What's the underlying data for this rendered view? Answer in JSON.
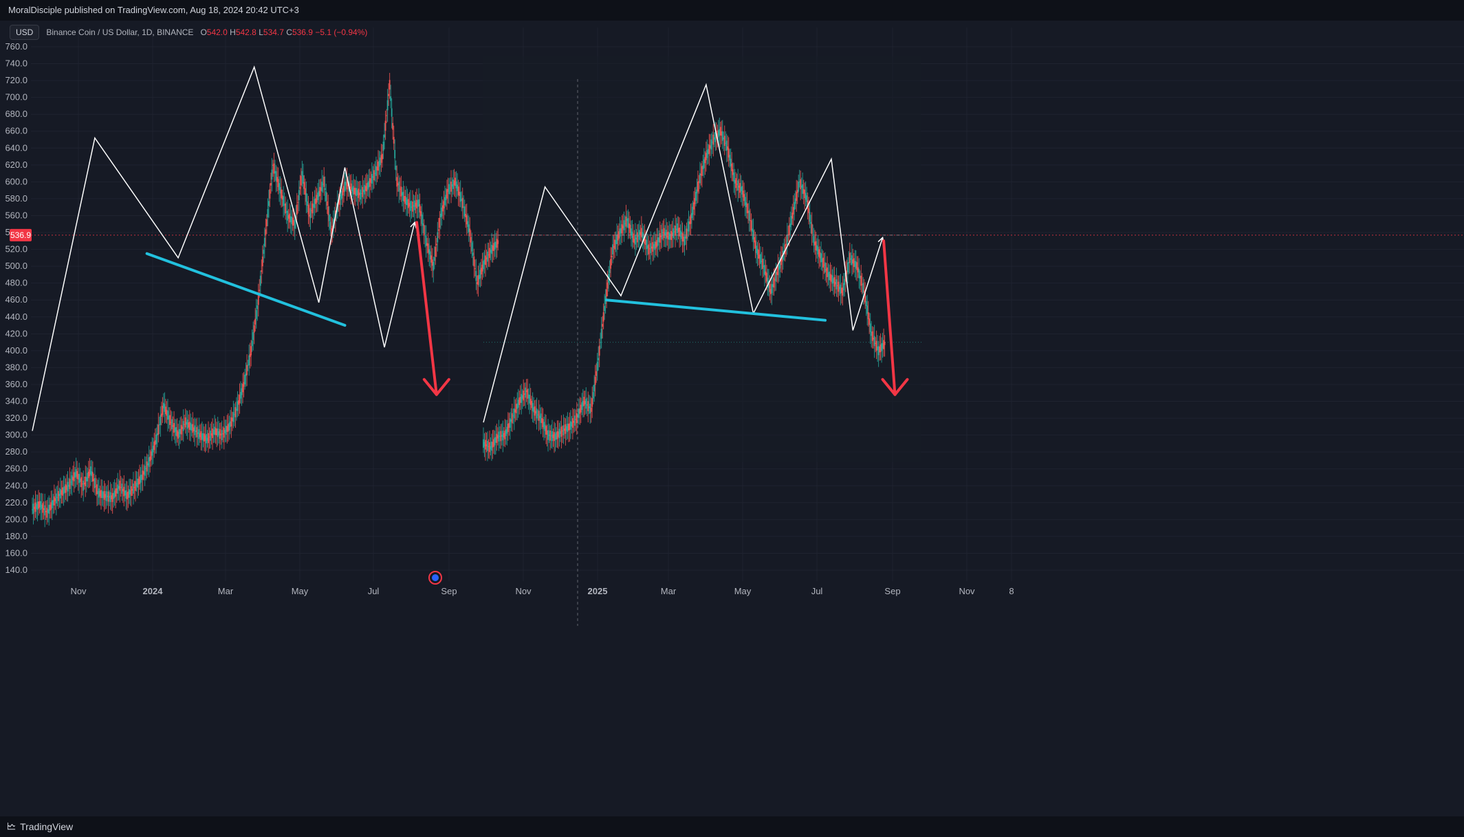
{
  "header": {
    "publisher_text": "MoralDisciple published on TradingView.com, Aug 18, 2024 20:42 UTC+3"
  },
  "legend": {
    "currency_button": "USD",
    "symbol": "Binance Coin / US Dollar, 1D, BINANCE",
    "o_label": "O",
    "o_value": "542.0",
    "h_label": "H",
    "h_value": "542.8",
    "l_label": "L",
    "l_value": "534.7",
    "c_label": "C",
    "c_value": "536.9",
    "change": "−5.1 (−0.94%)"
  },
  "footer": {
    "brand": "TradingView"
  },
  "colors": {
    "background": "#161a25",
    "up": "#26a69a",
    "down": "#ef5350",
    "pattern_line": "#ffffff",
    "neckline": "#22c1de",
    "arrow": "#f23645",
    "price_tag": "#f23645"
  },
  "chart_data": {
    "type": "line",
    "title": "",
    "xlabel": "",
    "ylabel": "",
    "ylim": [
      130,
      772
    ],
    "y_ticks": [
      760,
      740,
      720,
      700,
      680,
      660,
      640,
      620,
      600,
      580,
      560,
      540,
      520,
      500,
      480,
      460,
      440,
      420,
      400,
      380,
      360,
      340,
      320,
      300,
      280,
      260,
      240,
      220,
      200,
      180,
      160,
      140
    ],
    "x_ticks": [
      "Nov",
      "2024",
      "Mar",
      "May",
      "Jul",
      "Sep",
      "Nov",
      "2025",
      "Mar",
      "May",
      "Jul",
      "Sep",
      "Nov",
      "8"
    ],
    "current_price_label": "536.9",
    "current_price": 536.9,
    "series": [
      {
        "values": [
          [
            0,
            212
          ],
          [
            7,
            218
          ],
          [
            14,
            208
          ],
          [
            21,
            222
          ],
          [
            28,
            232
          ],
          [
            35,
            240
          ],
          [
            42,
            255
          ],
          [
            49,
            240
          ],
          [
            56,
            258
          ],
          [
            63,
            232
          ],
          [
            70,
            228
          ],
          [
            77,
            226
          ],
          [
            84,
            240
          ],
          [
            91,
            228
          ],
          [
            98,
            238
          ],
          [
            105,
            250
          ],
          [
            112,
            268
          ],
          [
            119,
            295
          ],
          [
            126,
            335
          ],
          [
            133,
            315
          ],
          [
            140,
            300
          ],
          [
            147,
            315
          ],
          [
            154,
            308
          ],
          [
            161,
            300
          ],
          [
            168,
            295
          ],
          [
            175,
            305
          ],
          [
            182,
            300
          ],
          [
            189,
            310
          ],
          [
            196,
            330
          ],
          [
            203,
            360
          ],
          [
            210,
            400
          ],
          [
            217,
            460
          ],
          [
            224,
            540
          ],
          [
            231,
            620
          ],
          [
            238,
            590
          ],
          [
            245,
            560
          ],
          [
            252,
            550
          ],
          [
            259,
            610
          ],
          [
            266,
            560
          ],
          [
            273,
            580
          ],
          [
            280,
            600
          ],
          [
            287,
            540
          ],
          [
            294,
            575
          ],
          [
            301,
            598
          ],
          [
            308,
            590
          ],
          [
            315,
            585
          ],
          [
            322,
            595
          ],
          [
            329,
            610
          ],
          [
            336,
            630
          ],
          [
            343,
            715
          ],
          [
            350,
            600
          ],
          [
            357,
            580
          ],
          [
            364,
            570
          ],
          [
            371,
            575
          ],
          [
            378,
            530
          ],
          [
            385,
            500
          ],
          [
            392,
            560
          ],
          [
            399,
            590
          ],
          [
            406,
            600
          ],
          [
            413,
            575
          ],
          [
            420,
            540
          ],
          [
            427,
            480
          ],
          [
            434,
            505
          ],
          [
            441,
            520
          ],
          [
            448,
            530
          ]
        ]
      },
      {
        "values": [
          [
            0,
            290
          ],
          [
            7,
            285
          ],
          [
            14,
            298
          ],
          [
            21,
            300
          ],
          [
            28,
            320
          ],
          [
            35,
            340
          ],
          [
            42,
            352
          ],
          [
            49,
            330
          ],
          [
            56,
            320
          ],
          [
            63,
            300
          ],
          [
            70,
            298
          ],
          [
            77,
            305
          ],
          [
            84,
            310
          ],
          [
            91,
            320
          ],
          [
            98,
            340
          ],
          [
            105,
            330
          ],
          [
            112,
            390
          ],
          [
            119,
            460
          ],
          [
            126,
            520
          ],
          [
            133,
            540
          ],
          [
            140,
            555
          ],
          [
            147,
            530
          ],
          [
            154,
            540
          ],
          [
            161,
            520
          ],
          [
            168,
            525
          ],
          [
            175,
            540
          ],
          [
            182,
            535
          ],
          [
            189,
            545
          ],
          [
            196,
            530
          ],
          [
            203,
            560
          ],
          [
            210,
            600
          ],
          [
            217,
            630
          ],
          [
            224,
            650
          ],
          [
            231,
            660
          ],
          [
            238,
            640
          ],
          [
            245,
            600
          ],
          [
            252,
            590
          ],
          [
            259,
            560
          ],
          [
            266,
            520
          ],
          [
            273,
            500
          ],
          [
            280,
            470
          ],
          [
            287,
            495
          ],
          [
            294,
            520
          ],
          [
            301,
            560
          ],
          [
            308,
            600
          ],
          [
            315,
            580
          ],
          [
            322,
            530
          ],
          [
            329,
            510
          ],
          [
            336,
            490
          ],
          [
            343,
            480
          ],
          [
            350,
            470
          ],
          [
            357,
            510
          ],
          [
            364,
            500
          ],
          [
            371,
            470
          ],
          [
            378,
            420
          ],
          [
            385,
            400
          ],
          [
            392,
            410
          ]
        ]
      }
    ],
    "pattern_lines": [
      [
        [
          0,
          305
        ],
        [
          60,
          652
        ],
        [
          140,
          510
        ],
        [
          213,
          736
        ],
        [
          275,
          457
        ],
        [
          300,
          617
        ],
        [
          338,
          404
        ],
        [
          367,
          552
        ]
      ],
      [
        [
          0,
          315
        ],
        [
          60,
          594
        ],
        [
          134,
          465
        ],
        [
          217,
          715
        ],
        [
          263,
          444
        ],
        [
          339,
          627
        ],
        [
          360,
          424
        ],
        [
          389,
          534
        ]
      ]
    ],
    "necklines": [
      [
        [
          110,
          515
        ],
        [
          300,
          430
        ]
      ],
      [
        [
          120,
          460
        ],
        [
          333,
          436
        ]
      ]
    ],
    "down_arrows": [
      [
        [
          369,
          552
        ],
        [
          388,
          348
        ]
      ],
      [
        [
          390,
          530
        ],
        [
          401,
          348
        ]
      ]
    ]
  }
}
